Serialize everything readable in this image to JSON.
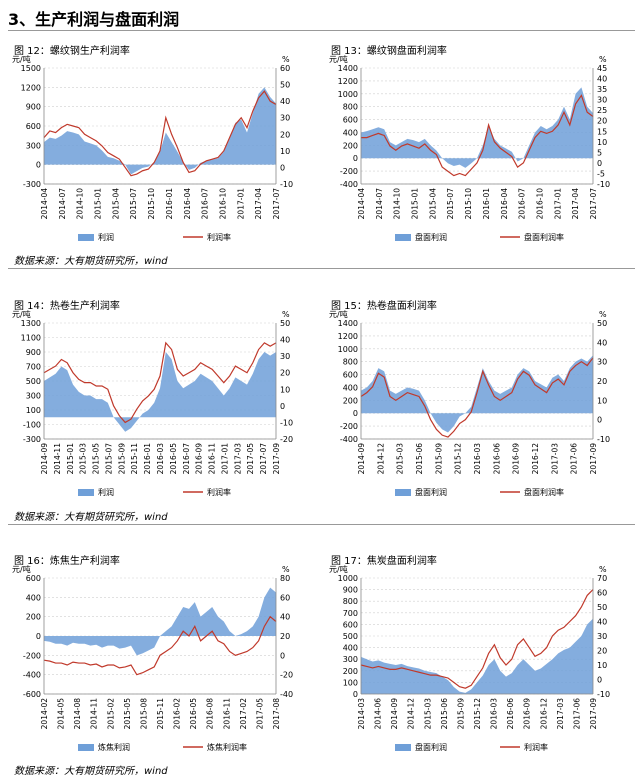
{
  "section_title": "3、生产利润与盘面利润",
  "source_note": "数据来源：大有期货研究所，wind",
  "colors": {
    "area": "#6f9fd8",
    "line": "#c0392b",
    "grid": "#cfcfcf",
    "divider": "#999999"
  },
  "chart_data": [
    {
      "id": "fig12",
      "type": "area",
      "title": "图 12：螺纹钢生产利润率",
      "ylabel_left": "元/吨",
      "ylabel_right": "%",
      "left_ticks": [
        "1500",
        "1200",
        "900",
        "600",
        "300",
        "0",
        "-300"
      ],
      "right_ticks": [
        "60",
        "50",
        "40",
        "30",
        "20",
        "10",
        "0",
        "-10"
      ],
      "left_range": [
        -300,
        1500
      ],
      "right_range": [
        -10,
        60
      ],
      "x_ticks": [
        "2014-04",
        "2014-07",
        "2014-10",
        "2015-01",
        "2015-04",
        "2015-07",
        "2015-10",
        "2016-01",
        "2016-04",
        "2016-07",
        "2016-10",
        "2017-01",
        "2017-04",
        "2017-07"
      ],
      "legend": [
        "利润",
        "利润率"
      ],
      "x_index": [
        0,
        1,
        2,
        3,
        4,
        5,
        6,
        7,
        8,
        9,
        10,
        11,
        12,
        13,
        14,
        15,
        16,
        17,
        18,
        19,
        20,
        21,
        22,
        23,
        24,
        25,
        26,
        27,
        28,
        29,
        30,
        31,
        32,
        33,
        34,
        35,
        36,
        37,
        38,
        39,
        40
      ],
      "area_values": [
        350,
        420,
        400,
        450,
        520,
        500,
        470,
        360,
        330,
        300,
        220,
        120,
        100,
        60,
        0,
        -150,
        -100,
        -50,
        -30,
        40,
        200,
        500,
        350,
        200,
        40,
        -80,
        -50,
        30,
        60,
        80,
        100,
        200,
        400,
        650,
        700,
        500,
        800,
        1100,
        1200,
        1050,
        950
      ],
      "line_values": [
        18,
        22,
        21,
        24,
        26,
        25,
        24,
        20,
        18,
        16,
        13,
        9,
        7,
        5,
        0,
        -5,
        -4,
        -2,
        -1,
        3,
        10,
        30,
        20,
        12,
        3,
        -3,
        -2,
        2,
        4,
        5,
        6,
        10,
        18,
        26,
        30,
        24,
        34,
        42,
        46,
        40,
        38
      ]
    },
    {
      "id": "fig13",
      "type": "area",
      "title": "图 13：螺纹钢盘面利润率",
      "ylabel_left": "元/吨",
      "ylabel_right": "%",
      "left_ticks": [
        "1400",
        "1200",
        "1000",
        "800",
        "600",
        "400",
        "200",
        "0",
        "-200",
        "-400"
      ],
      "right_ticks": [
        "45",
        "40",
        "35",
        "30",
        "25",
        "20",
        "15",
        "10",
        "5",
        "0",
        "-5",
        "-10"
      ],
      "left_range": [
        -400,
        1400
      ],
      "right_range": [
        -10,
        45
      ],
      "x_ticks": [
        "2014-04",
        "2014-07",
        "2014-10",
        "2015-01",
        "2015-04",
        "2015-07",
        "2015-10",
        "2016-01",
        "2016-04",
        "2016-07",
        "2016-10",
        "2017-01",
        "2017-04",
        "2017-07"
      ],
      "legend": [
        "盘面利润",
        "盘面利润率"
      ],
      "x_index": [
        0,
        1,
        2,
        3,
        4,
        5,
        6,
        7,
        8,
        9,
        10,
        11,
        12,
        13,
        14,
        15,
        16,
        17,
        18,
        19,
        20,
        21,
        22,
        23,
        24,
        25,
        26,
        27,
        28,
        29,
        30,
        31,
        32,
        33,
        34,
        35,
        36,
        37,
        38,
        39,
        40
      ],
      "area_values": [
        400,
        420,
        450,
        480,
        450,
        250,
        200,
        250,
        300,
        280,
        250,
        300,
        200,
        120,
        0,
        -80,
        -120,
        -100,
        -150,
        -80,
        0,
        200,
        500,
        300,
        200,
        150,
        100,
        -50,
        0,
        200,
        400,
        500,
        450,
        500,
        600,
        800,
        600,
        1000,
        1100,
        800,
        700
      ],
      "line_values": [
        12,
        12,
        13,
        14,
        13,
        8,
        6,
        8,
        9,
        8,
        7,
        9,
        6,
        4,
        -2,
        -4,
        -6,
        -5,
        -6,
        -3,
        0,
        6,
        18,
        10,
        7,
        5,
        3,
        -2,
        0,
        6,
        12,
        15,
        14,
        15,
        18,
        24,
        18,
        28,
        32,
        24,
        22
      ]
    },
    {
      "id": "fig14",
      "type": "area",
      "title": "图 14：热卷生产利润率",
      "ylabel_left": "元/吨",
      "ylabel_right": "%",
      "left_ticks": [
        "1300",
        "1100",
        "900",
        "700",
        "500",
        "300",
        "100",
        "-100",
        "-300"
      ],
      "right_ticks": [
        "50",
        "40",
        "30",
        "20",
        "10",
        "0",
        "-10",
        "-20"
      ],
      "left_range": [
        -300,
        1300
      ],
      "right_range": [
        -20,
        50
      ],
      "x_ticks": [
        "2014-09",
        "2014-11",
        "2015-01",
        "2015-03",
        "2015-05",
        "2015-07",
        "2015-09",
        "2015-11",
        "2016-01",
        "2016-03",
        "2016-05",
        "2016-07",
        "2016-09",
        "2016-11",
        "2017-01",
        "2017-03",
        "2017-05",
        "2017-07",
        "2017-09"
      ],
      "legend": [
        "利润",
        "利润率"
      ],
      "x_index": [
        0,
        1,
        2,
        3,
        4,
        5,
        6,
        7,
        8,
        9,
        10,
        11,
        12,
        13,
        14,
        15,
        16,
        17,
        18,
        19,
        20,
        21,
        22,
        23,
        24,
        25,
        26,
        27,
        28,
        29,
        30,
        31,
        32,
        33,
        34,
        35,
        36,
        37,
        38,
        39,
        40
      ],
      "area_values": [
        500,
        550,
        600,
        700,
        650,
        450,
        350,
        300,
        300,
        250,
        250,
        200,
        0,
        -100,
        -200,
        -150,
        -50,
        50,
        100,
        200,
        400,
        900,
        800,
        500,
        400,
        450,
        500,
        600,
        550,
        500,
        400,
        300,
        400,
        550,
        500,
        450,
        600,
        800,
        900,
        850,
        900
      ],
      "line_values": [
        20,
        22,
        24,
        28,
        26,
        20,
        16,
        14,
        14,
        12,
        12,
        10,
        0,
        -6,
        -10,
        -8,
        -2,
        3,
        6,
        10,
        18,
        38,
        34,
        22,
        18,
        20,
        22,
        26,
        24,
        22,
        18,
        14,
        18,
        24,
        22,
        20,
        26,
        34,
        38,
        36,
        38
      ]
    },
    {
      "id": "fig15",
      "type": "area",
      "title": "图 15：热卷盘面利润率",
      "ylabel_left": "元/吨",
      "ylabel_right": "%",
      "left_ticks": [
        "1400",
        "1200",
        "1000",
        "800",
        "600",
        "400",
        "200",
        "0",
        "-200",
        "-400"
      ],
      "right_ticks": [
        "50",
        "40",
        "30",
        "20",
        "10",
        "0",
        "-10"
      ],
      "left_range": [
        -400,
        1400
      ],
      "right_range": [
        -10,
        50
      ],
      "x_ticks": [
        "2014-09",
        "2014-12",
        "2015-03",
        "2015-06",
        "2015-09",
        "2015-12",
        "2016-03",
        "2016-06",
        "2016-09",
        "2016-12",
        "2017-03",
        "2017-06",
        "2017-09"
      ],
      "legend": [
        "盘面利润",
        "盘面利润率"
      ],
      "x_index": [
        0,
        1,
        2,
        3,
        4,
        5,
        6,
        7,
        8,
        9,
        10,
        11,
        12,
        13,
        14,
        15,
        16,
        17,
        18,
        19,
        20,
        21,
        22,
        23,
        24,
        25,
        26,
        27,
        28,
        29,
        30,
        31,
        32,
        33,
        34,
        35,
        36,
        37,
        38,
        39,
        40
      ],
      "area_values": [
        350,
        400,
        500,
        700,
        650,
        350,
        300,
        350,
        400,
        380,
        350,
        200,
        0,
        -150,
        -250,
        -300,
        -200,
        -50,
        0,
        100,
        400,
        700,
        500,
        350,
        300,
        350,
        400,
        600,
        700,
        650,
        500,
        450,
        400,
        550,
        600,
        500,
        700,
        800,
        850,
        800,
        900
      ],
      "line_values": [
        12,
        14,
        17,
        24,
        22,
        12,
        10,
        12,
        14,
        13,
        12,
        7,
        0,
        -5,
        -8,
        -9,
        -6,
        -2,
        0,
        4,
        14,
        25,
        18,
        12,
        10,
        12,
        14,
        21,
        25,
        23,
        18,
        16,
        14,
        19,
        21,
        18,
        25,
        28,
        30,
        28,
        32
      ]
    },
    {
      "id": "fig16",
      "type": "area",
      "title": "图 16：炼焦生产利润率",
      "ylabel_left": "元/吨",
      "ylabel_right": "%",
      "left_ticks": [
        "600",
        "400",
        "200",
        "0",
        "-200",
        "-400",
        "-600"
      ],
      "right_ticks": [
        "80",
        "60",
        "40",
        "20",
        "0",
        "-20",
        "-40"
      ],
      "left_range": [
        -600,
        600
      ],
      "right_range": [
        -40,
        80
      ],
      "x_ticks": [
        "2014-02",
        "2014-05",
        "2014-08",
        "2014-11",
        "2015-02",
        "2015-05",
        "2015-08",
        "2015-11",
        "2016-02",
        "2016-05",
        "2016-08",
        "2016-11",
        "2017-02",
        "2017-05",
        "2017-08"
      ],
      "legend": [
        "炼焦利润",
        "炼焦利润率"
      ],
      "x_index": [
        0,
        1,
        2,
        3,
        4,
        5,
        6,
        7,
        8,
        9,
        10,
        11,
        12,
        13,
        14,
        15,
        16,
        17,
        18,
        19,
        20,
        21,
        22,
        23,
        24,
        25,
        26,
        27,
        28,
        29,
        30,
        31,
        32,
        33,
        34,
        35,
        36,
        37,
        38,
        39,
        40
      ],
      "area_values": [
        -50,
        -60,
        -80,
        -80,
        -100,
        -70,
        -80,
        -80,
        -100,
        -90,
        -120,
        -100,
        -100,
        -130,
        -120,
        -100,
        -200,
        -180,
        -150,
        -120,
        0,
        50,
        100,
        200,
        300,
        280,
        350,
        200,
        250,
        300,
        200,
        150,
        50,
        0,
        20,
        50,
        100,
        200,
        400,
        500,
        450
      ],
      "line_values": [
        -5,
        -6,
        -8,
        -8,
        -10,
        -7,
        -8,
        -8,
        -10,
        -9,
        -12,
        -10,
        -10,
        -13,
        -12,
        -10,
        -20,
        -18,
        -15,
        -12,
        0,
        4,
        8,
        15,
        25,
        20,
        30,
        15,
        20,
        25,
        15,
        12,
        4,
        0,
        2,
        4,
        8,
        15,
        30,
        40,
        35
      ]
    },
    {
      "id": "fig17",
      "type": "area",
      "title": "图 17：焦炭盘面利润率",
      "ylabel_left": "元/吨",
      "ylabel_right": "%",
      "left_ticks": [
        "1000",
        "900",
        "800",
        "700",
        "600",
        "500",
        "400",
        "300",
        "200",
        "100",
        "0"
      ],
      "right_ticks": [
        "70",
        "60",
        "50",
        "40",
        "30",
        "20",
        "10",
        "0",
        "-10"
      ],
      "left_range": [
        0,
        1000
      ],
      "right_range": [
        -10,
        70
      ],
      "x_ticks": [
        "2014-03",
        "2014-06",
        "2014-09",
        "2014-12",
        "2015-03",
        "2015-06",
        "2015-09",
        "2015-12",
        "2016-03",
        "2016-06",
        "2016-09",
        "2016-12",
        "2017-03",
        "2017-06",
        "2017-09"
      ],
      "legend": [
        "盘面利润",
        "利润率"
      ],
      "x_index": [
        0,
        1,
        2,
        3,
        4,
        5,
        6,
        7,
        8,
        9,
        10,
        11,
        12,
        13,
        14,
        15,
        16,
        17,
        18,
        19,
        20,
        21,
        22,
        23,
        24,
        25,
        26,
        27,
        28,
        29,
        30,
        31,
        32,
        33,
        34,
        35,
        36,
        37,
        38,
        39,
        40
      ],
      "area_values": [
        320,
        300,
        280,
        290,
        270,
        260,
        250,
        260,
        240,
        230,
        220,
        200,
        190,
        180,
        150,
        120,
        60,
        20,
        10,
        40,
        100,
        160,
        250,
        300,
        200,
        150,
        180,
        250,
        300,
        250,
        200,
        220,
        260,
        300,
        350,
        380,
        400,
        450,
        500,
        600,
        650
      ],
      "line_values": [
        10,
        9,
        8,
        9,
        8,
        7,
        7,
        8,
        7,
        6,
        5,
        4,
        3,
        3,
        2,
        1,
        -2,
        -5,
        -6,
        -4,
        2,
        8,
        18,
        24,
        15,
        10,
        14,
        24,
        28,
        22,
        16,
        18,
        22,
        30,
        34,
        36,
        40,
        44,
        50,
        58,
        62
      ]
    }
  ]
}
